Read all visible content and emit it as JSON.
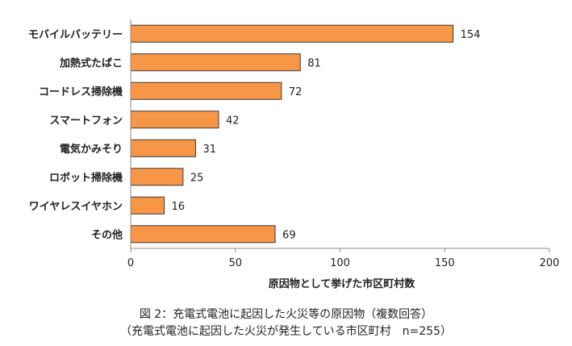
{
  "chart_data": {
    "type": "bar",
    "orientation": "horizontal",
    "categories": [
      "モバイルバッテリー",
      "加熱式たばこ",
      "コードレス掃除機",
      "スマートフォン",
      "電気かみそり",
      "ロボット掃除機",
      "ワイヤレスイヤホン",
      "その他"
    ],
    "values": [
      154,
      81,
      72,
      42,
      31,
      25,
      16,
      69
    ],
    "xlabel": "原因物として挙げた市区町村数",
    "xlim": [
      0,
      200
    ],
    "xticks": [
      0,
      50,
      100,
      150,
      200
    ],
    "grid": false,
    "bar_color": "#f79646",
    "bar_edge_color": "#3a3a3a"
  },
  "caption": {
    "line1": "図 2：充電式電池に起因した火災等の原因物（複数回答）",
    "line2": "（充電式電池に起因した火災が発生している市区町村　n=255）"
  }
}
